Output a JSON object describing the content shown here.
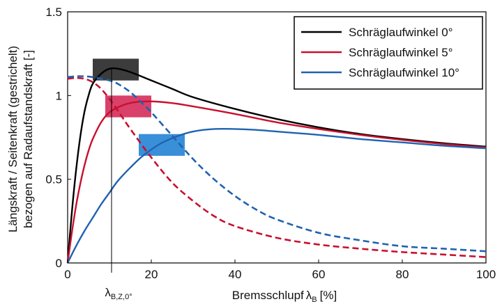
{
  "chart_data": {
    "type": "line",
    "xlabel": "Bremsschlupf",
    "xlabel_symbol": "λ",
    "xlabel_subscript": "B",
    "xlabel_unit": "[%]",
    "ylabel_line1": "Längskraft / Seitenkraft (gestrichelt)",
    "ylabel_line2": "bezogen auf Radaufstandskraft [-]",
    "xlim": [
      0,
      100
    ],
    "ylim": [
      0,
      1.5
    ],
    "xticks": [
      "0",
      "20",
      "40",
      "60",
      "80",
      "100"
    ],
    "yticks": [
      "0",
      "0.5",
      "1",
      "1.5"
    ],
    "marker_label": "λ",
    "marker_subscript": "B,Z,0°",
    "marker_x": 10.5,
    "grid": false,
    "legend_position": "top-right",
    "series": [
      {
        "name": "Schräglaufwinkel 0°",
        "color": "#000000",
        "longitudinal": [
          [
            0,
            0
          ],
          [
            1,
            0.3
          ],
          [
            2,
            0.55
          ],
          [
            3,
            0.75
          ],
          [
            4,
            0.9
          ],
          [
            5,
            1.0
          ],
          [
            6,
            1.07
          ],
          [
            8,
            1.13
          ],
          [
            10,
            1.16
          ],
          [
            12,
            1.16
          ],
          [
            15,
            1.14
          ],
          [
            20,
            1.09
          ],
          [
            25,
            1.04
          ],
          [
            30,
            0.99
          ],
          [
            40,
            0.92
          ],
          [
            50,
            0.86
          ],
          [
            60,
            0.81
          ],
          [
            70,
            0.77
          ],
          [
            80,
            0.74
          ],
          [
            90,
            0.715
          ],
          [
            100,
            0.695
          ]
        ],
        "lateral": []
      },
      {
        "name": "Schräglaufwinkel 5°",
        "color": "#c8102e",
        "longitudinal": [
          [
            0,
            0
          ],
          [
            1,
            0.18
          ],
          [
            2,
            0.34
          ],
          [
            3,
            0.47
          ],
          [
            4,
            0.58
          ],
          [
            5,
            0.67
          ],
          [
            6,
            0.74
          ],
          [
            8,
            0.84
          ],
          [
            10,
            0.9
          ],
          [
            13,
            0.94
          ],
          [
            16,
            0.96
          ],
          [
            20,
            0.965
          ],
          [
            25,
            0.955
          ],
          [
            30,
            0.935
          ],
          [
            40,
            0.89
          ],
          [
            50,
            0.84
          ],
          [
            60,
            0.8
          ],
          [
            70,
            0.765
          ],
          [
            80,
            0.735
          ],
          [
            90,
            0.71
          ],
          [
            100,
            0.69
          ]
        ],
        "lateral": [
          [
            0,
            1.1
          ],
          [
            2,
            1.105
          ],
          [
            4,
            1.1
          ],
          [
            6,
            1.08
          ],
          [
            8,
            1.04
          ],
          [
            10,
            0.98
          ],
          [
            12,
            0.91
          ],
          [
            15,
            0.8
          ],
          [
            20,
            0.63
          ],
          [
            25,
            0.48
          ],
          [
            30,
            0.37
          ],
          [
            35,
            0.28
          ],
          [
            40,
            0.22
          ],
          [
            50,
            0.15
          ],
          [
            60,
            0.11
          ],
          [
            70,
            0.085
          ],
          [
            80,
            0.065
          ],
          [
            90,
            0.05
          ],
          [
            100,
            0.035
          ]
        ]
      },
      {
        "name": "Schräglaufwinkel 10°",
        "color": "#1f63b0",
        "longitudinal": [
          [
            0,
            0
          ],
          [
            2,
            0.1
          ],
          [
            4,
            0.19
          ],
          [
            6,
            0.27
          ],
          [
            8,
            0.35
          ],
          [
            10,
            0.42
          ],
          [
            12,
            0.49
          ],
          [
            15,
            0.57
          ],
          [
            18,
            0.64
          ],
          [
            22,
            0.71
          ],
          [
            26,
            0.755
          ],
          [
            30,
            0.785
          ],
          [
            35,
            0.8
          ],
          [
            40,
            0.8
          ],
          [
            45,
            0.795
          ],
          [
            50,
            0.785
          ],
          [
            60,
            0.765
          ],
          [
            70,
            0.74
          ],
          [
            80,
            0.72
          ],
          [
            90,
            0.7
          ],
          [
            100,
            0.685
          ]
        ],
        "lateral": [
          [
            0,
            1.11
          ],
          [
            2,
            1.115
          ],
          [
            4,
            1.115
          ],
          [
            6,
            1.11
          ],
          [
            8,
            1.1
          ],
          [
            10,
            1.09
          ],
          [
            12,
            1.07
          ],
          [
            15,
            1.02
          ],
          [
            18,
            0.95
          ],
          [
            20,
            0.9
          ],
          [
            25,
            0.76
          ],
          [
            30,
            0.62
          ],
          [
            35,
            0.5
          ],
          [
            40,
            0.4
          ],
          [
            45,
            0.32
          ],
          [
            50,
            0.26
          ],
          [
            60,
            0.18
          ],
          [
            70,
            0.135
          ],
          [
            80,
            0.1
          ],
          [
            90,
            0.085
          ],
          [
            100,
            0.07
          ]
        ]
      }
    ],
    "highlight_boxes": [
      {
        "color": "#3c3c3c",
        "x0": 6,
        "x1": 17,
        "y0": 1.09,
        "y1": 1.22
      },
      {
        "color": "#d9416a",
        "x0": 9,
        "x1": 20,
        "y0": 0.87,
        "y1": 1.0
      },
      {
        "color": "#3a8fd9",
        "x0": 17,
        "x1": 28,
        "y0": 0.64,
        "y1": 0.77
      }
    ]
  }
}
